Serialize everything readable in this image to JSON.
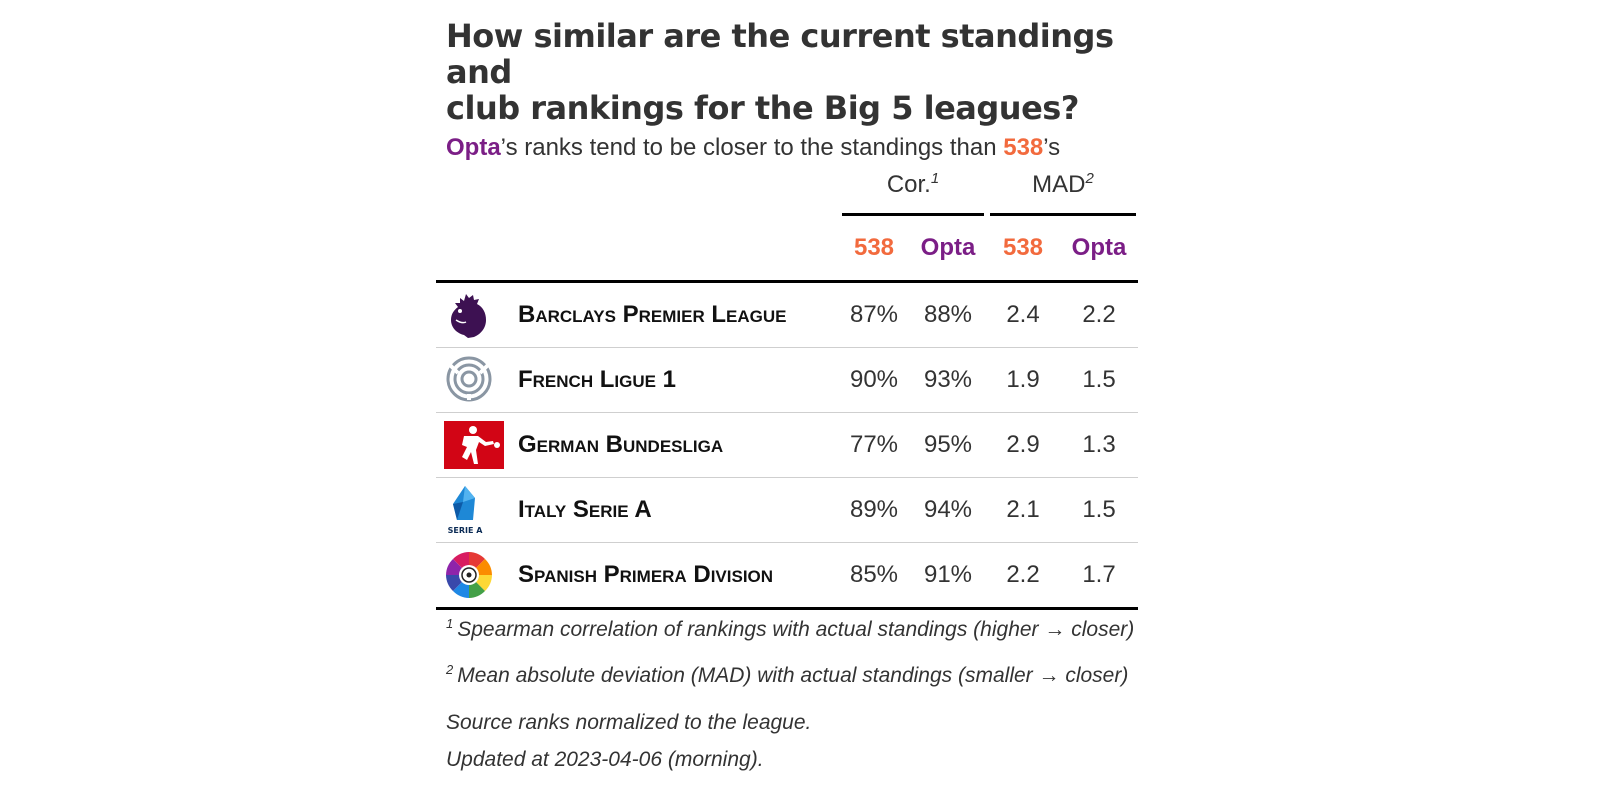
{
  "title_line1": "How similar are the current standings and",
  "title_line2": "club rankings for the Big 5 leagues?",
  "subtitle": {
    "opta": "Opta",
    "mid": "’s ranks tend to be closer to the standings than ",
    "f38": "538",
    "end": "’s"
  },
  "spanners": {
    "cor": "Cor.",
    "cor_note": "1",
    "mad": "MAD",
    "mad_note": "2"
  },
  "columns": {
    "c538": "538",
    "copta": "Opta",
    "m538": "538",
    "mopta": "Opta"
  },
  "rows": [
    {
      "league": "Barclays Premier League",
      "logo": "premier-league-lion-icon",
      "cor538": "87%",
      "corOpta": "88%",
      "mad538": "2.4",
      "madOpta": "2.2"
    },
    {
      "league": "French Ligue 1",
      "logo": "ligue-1-icon",
      "cor538": "90%",
      "corOpta": "93%",
      "mad538": "1.9",
      "madOpta": "1.5"
    },
    {
      "league": "German Bundesliga",
      "logo": "bundesliga-icon",
      "cor538": "77%",
      "corOpta": "95%",
      "mad538": "2.9",
      "madOpta": "1.3"
    },
    {
      "league": "Italy Serie A",
      "logo": "serie-a-icon",
      "logo_text": "SERIE A",
      "cor538": "89%",
      "corOpta": "94%",
      "mad538": "2.1",
      "madOpta": "1.5"
    },
    {
      "league": "Spanish Primera Division",
      "logo": "laliga-icon",
      "cor538": "85%",
      "corOpta": "91%",
      "mad538": "2.2",
      "madOpta": "1.7"
    }
  ],
  "footnotes": [
    {
      "mark": "1",
      "text": "Spearman correlation of rankings with actual standings (higher → closer)"
    },
    {
      "mark": "2",
      "text": "Mean absolute deviation (MAD) with actual standings (smaller → closer)"
    }
  ],
  "source_note": "Source ranks normalized to the league.",
  "updated_note": "Updated at 2023-04-06 (morning).",
  "colors": {
    "c538": "#f26a3d",
    "opta": "#7b1e86"
  }
}
